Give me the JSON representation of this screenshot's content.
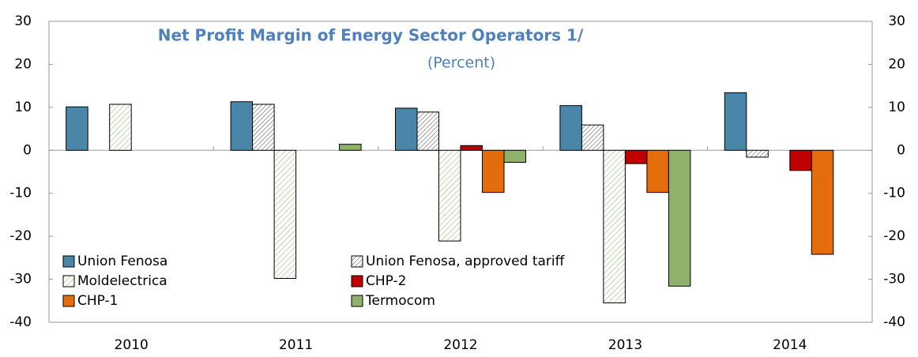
{
  "chart_data": {
    "type": "bar",
    "title": "Net Profit Margin of Energy Sector Operators 1/",
    "subtitle": "(Percent)",
    "categories": [
      "2010",
      "2011",
      "2012",
      "2013",
      "2014"
    ],
    "series": [
      {
        "name": "Union Fenosa",
        "color": "#4a86a8",
        "hatch": false,
        "values": [
          10.1,
          11.3,
          9.8,
          10.4,
          13.4
        ]
      },
      {
        "name": "Union Fenosa, approved tariff",
        "color": "#bfbfbf",
        "hatch": true,
        "values": [
          null,
          10.7,
          8.9,
          5.9,
          -1.6
        ]
      },
      {
        "name": "Moldelectrica",
        "color": "#c3d9a5",
        "hatch": true,
        "values": [
          10.7,
          -29.8,
          -21.1,
          -35.5,
          null
        ]
      },
      {
        "name": "CHP-2",
        "color": "#c00000",
        "hatch": false,
        "values": [
          null,
          null,
          1.1,
          -3.1,
          -4.7
        ]
      },
      {
        "name": "CHP-1",
        "color": "#e46c0a",
        "hatch": false,
        "values": [
          null,
          null,
          -9.8,
          -9.8,
          -24.2
        ]
      },
      {
        "name": "Termocom",
        "color": "#8fb26b",
        "hatch": false,
        "values": [
          null,
          1.4,
          -2.8,
          -31.6,
          null
        ]
      }
    ],
    "ylim": [
      -40,
      30
    ],
    "yticks": [
      -40,
      -30,
      -20,
      -10,
      0,
      10,
      20,
      30
    ],
    "y2lim": [
      -40,
      30
    ],
    "y2ticks": [
      -40,
      -30,
      -20,
      -10,
      0,
      10,
      20,
      30
    ],
    "grid": false
  }
}
